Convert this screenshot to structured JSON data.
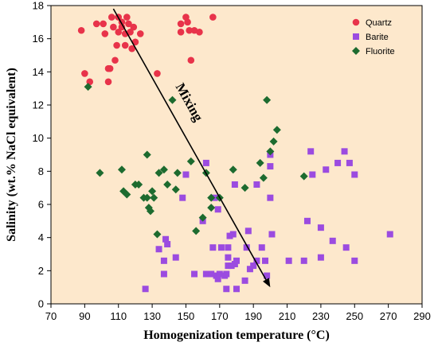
{
  "chart_data": {
    "type": "scatter",
    "title": "",
    "xlabel": "Homogenization temperature (°C)",
    "ylabel": "Salinity (wt.% NaCl equivalent)",
    "xlim": [
      70,
      290
    ],
    "ylim": [
      0,
      18
    ],
    "xticks": [
      "70",
      "90",
      "110",
      "130",
      "150",
      "170",
      "190",
      "210",
      "230",
      "250",
      "270",
      "290"
    ],
    "yticks": [
      "0",
      "2",
      "4",
      "6",
      "8",
      "10",
      "12",
      "14",
      "16",
      "18"
    ],
    "plot_background": "#fde8cc",
    "grid": false,
    "legend_position": "top-right",
    "series": [
      {
        "name": "Quartz",
        "marker": "circle",
        "color": "#e8334a",
        "points": [
          [
            88,
            16.5
          ],
          [
            90,
            13.9
          ],
          [
            93,
            13.4
          ],
          [
            97,
            16.9
          ],
          [
            101,
            16.9
          ],
          [
            102,
            16.3
          ],
          [
            104,
            13.4
          ],
          [
            104,
            14.2
          ],
          [
            105,
            14.2
          ],
          [
            106,
            17.3
          ],
          [
            107,
            16.7
          ],
          [
            108,
            14.7
          ],
          [
            109,
            15.6
          ],
          [
            110,
            17.3
          ],
          [
            110,
            16.4
          ],
          [
            112,
            17.0
          ],
          [
            112,
            16.7
          ],
          [
            114,
            16.3
          ],
          [
            114,
            15.6
          ],
          [
            115,
            17.3
          ],
          [
            116,
            16.9
          ],
          [
            117,
            16.4
          ],
          [
            118,
            15.4
          ],
          [
            119,
            16.7
          ],
          [
            120,
            15.8
          ],
          [
            123,
            16.3
          ],
          [
            133,
            13.9
          ],
          [
            147,
            16.9
          ],
          [
            147,
            16.4
          ],
          [
            150,
            17.3
          ],
          [
            151,
            17.0
          ],
          [
            152,
            16.5
          ],
          [
            153,
            14.7
          ],
          [
            155,
            16.5
          ],
          [
            158,
            16.4
          ],
          [
            166,
            17.3
          ]
        ]
      },
      {
        "name": "Barite",
        "marker": "square",
        "color": "#9b4be0",
        "points": [
          [
            126,
            0.9
          ],
          [
            134,
            3.3
          ],
          [
            137,
            2.6
          ],
          [
            137,
            1.8
          ],
          [
            138,
            3.9
          ],
          [
            139,
            3.6
          ],
          [
            144,
            2.8
          ],
          [
            148,
            6.4
          ],
          [
            150,
            7.8
          ],
          [
            155,
            1.8
          ],
          [
            160,
            5.0
          ],
          [
            162,
            8.5
          ],
          [
            162,
            1.8
          ],
          [
            165,
            1.8
          ],
          [
            166,
            3.4
          ],
          [
            167,
            6.4
          ],
          [
            168,
            1.7
          ],
          [
            169,
            5.7
          ],
          [
            169,
            1.5
          ],
          [
            170,
            1.8
          ],
          [
            171,
            3.4
          ],
          [
            173,
            1.7
          ],
          [
            174,
            1.8
          ],
          [
            174,
            0.9
          ],
          [
            175,
            3.4
          ],
          [
            175,
            2.8
          ],
          [
            175,
            2.3
          ],
          [
            176,
            4.1
          ],
          [
            177,
            2.3
          ],
          [
            178,
            4.2
          ],
          [
            179,
            7.2
          ],
          [
            179,
            2.4
          ],
          [
            180,
            0.9
          ],
          [
            180,
            2.6
          ],
          [
            185,
            1.4
          ],
          [
            186,
            3.4
          ],
          [
            187,
            4.4
          ],
          [
            188,
            2.1
          ],
          [
            190,
            2.3
          ],
          [
            192,
            7.2
          ],
          [
            192,
            2.6
          ],
          [
            195,
            3.4
          ],
          [
            197,
            2.6
          ],
          [
            198,
            1.7
          ],
          [
            200,
            8.3
          ],
          [
            200,
            6.4
          ],
          [
            200,
            9.0
          ],
          [
            201,
            4.2
          ],
          [
            211,
            2.6
          ],
          [
            220,
            2.6
          ],
          [
            222,
            5.0
          ],
          [
            224,
            9.2
          ],
          [
            225,
            7.8
          ],
          [
            230,
            4.6
          ],
          [
            230,
            2.8
          ],
          [
            233,
            8.1
          ],
          [
            237,
            3.8
          ],
          [
            240,
            8.5
          ],
          [
            244,
            9.2
          ],
          [
            245,
            3.4
          ],
          [
            247,
            8.5
          ],
          [
            250,
            7.8
          ],
          [
            250,
            2.6
          ],
          [
            271,
            4.2
          ]
        ]
      },
      {
        "name": "Fluorite",
        "marker": "diamond",
        "color": "#1d6b2f",
        "points": [
          [
            92,
            13.1
          ],
          [
            99,
            7.9
          ],
          [
            112,
            8.1
          ],
          [
            113,
            6.8
          ],
          [
            115,
            6.6
          ],
          [
            120,
            7.2
          ],
          [
            122,
            7.2
          ],
          [
            125,
            6.4
          ],
          [
            127,
            9.0
          ],
          [
            127,
            6.4
          ],
          [
            128,
            5.8
          ],
          [
            129,
            5.6
          ],
          [
            130,
            6.8
          ],
          [
            131,
            6.4
          ],
          [
            133,
            4.2
          ],
          [
            134,
            7.9
          ],
          [
            137,
            8.1
          ],
          [
            139,
            7.2
          ],
          [
            142,
            12.3
          ],
          [
            144,
            6.9
          ],
          [
            145,
            7.9
          ],
          [
            153,
            8.6
          ],
          [
            156,
            4.4
          ],
          [
            160,
            5.2
          ],
          [
            162,
            7.9
          ],
          [
            165,
            6.4
          ],
          [
            165,
            5.8
          ],
          [
            170,
            6.4
          ],
          [
            178,
            8.1
          ],
          [
            185,
            7.0
          ],
          [
            194,
            8.5
          ],
          [
            196,
            7.6
          ],
          [
            198,
            12.3
          ],
          [
            200,
            9.2
          ],
          [
            202,
            9.8
          ],
          [
            204,
            10.5
          ],
          [
            220,
            7.7
          ]
        ]
      }
    ],
    "annotation": {
      "text": "Mixing",
      "arrow_from": [
        107,
        17.8
      ],
      "arrow_to": [
        200,
        1.0
      ]
    }
  }
}
